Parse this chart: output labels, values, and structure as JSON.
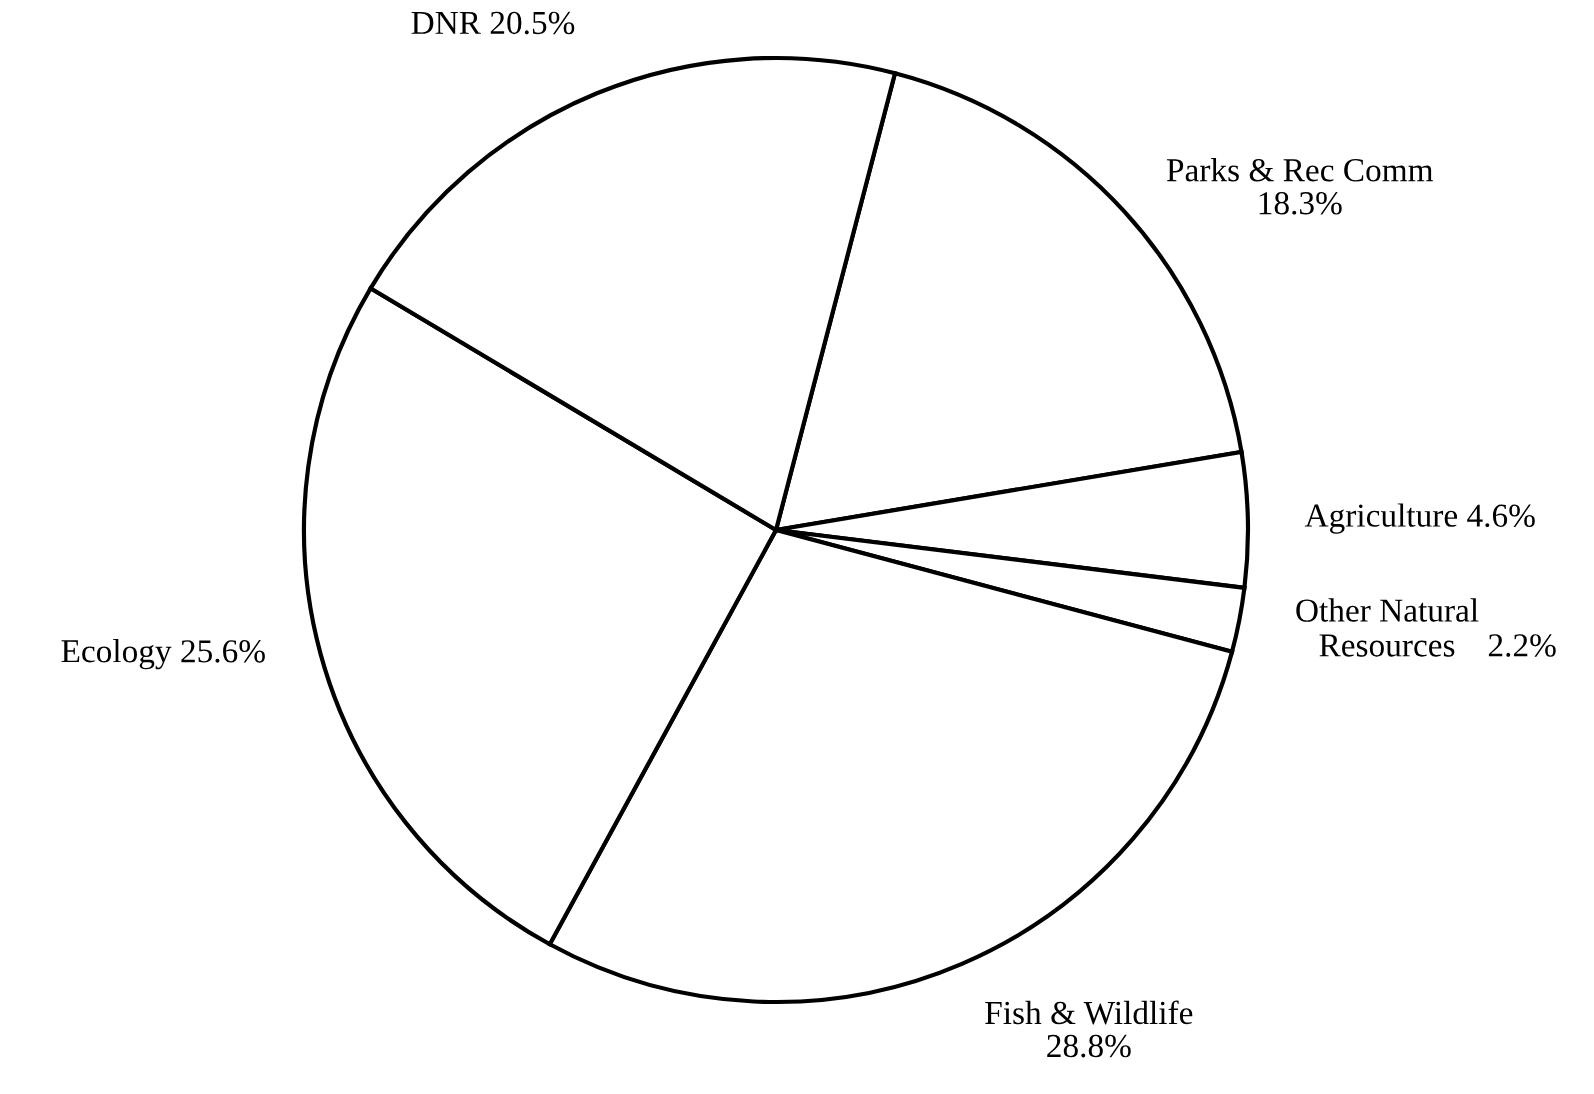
{
  "chart_data": {
    "type": "pie",
    "categories": [
      "Parks & Rec Comm",
      "Agriculture",
      "Other Natural\nResources",
      "Fish & Wildlife",
      "Ecology",
      "DNR"
    ],
    "values": [
      18.3,
      4.6,
      2.2,
      28.8,
      25.6,
      20.5
    ],
    "colors": [
      "#ffffff",
      "#ffffff",
      "#ffffff",
      "#ffffff",
      "#ffffff",
      "#ffffff"
    ],
    "value_labels": [
      "18.3%",
      "4.6%",
      "2.2%",
      "28.8%",
      "25.6%",
      "20.5%"
    ]
  }
}
